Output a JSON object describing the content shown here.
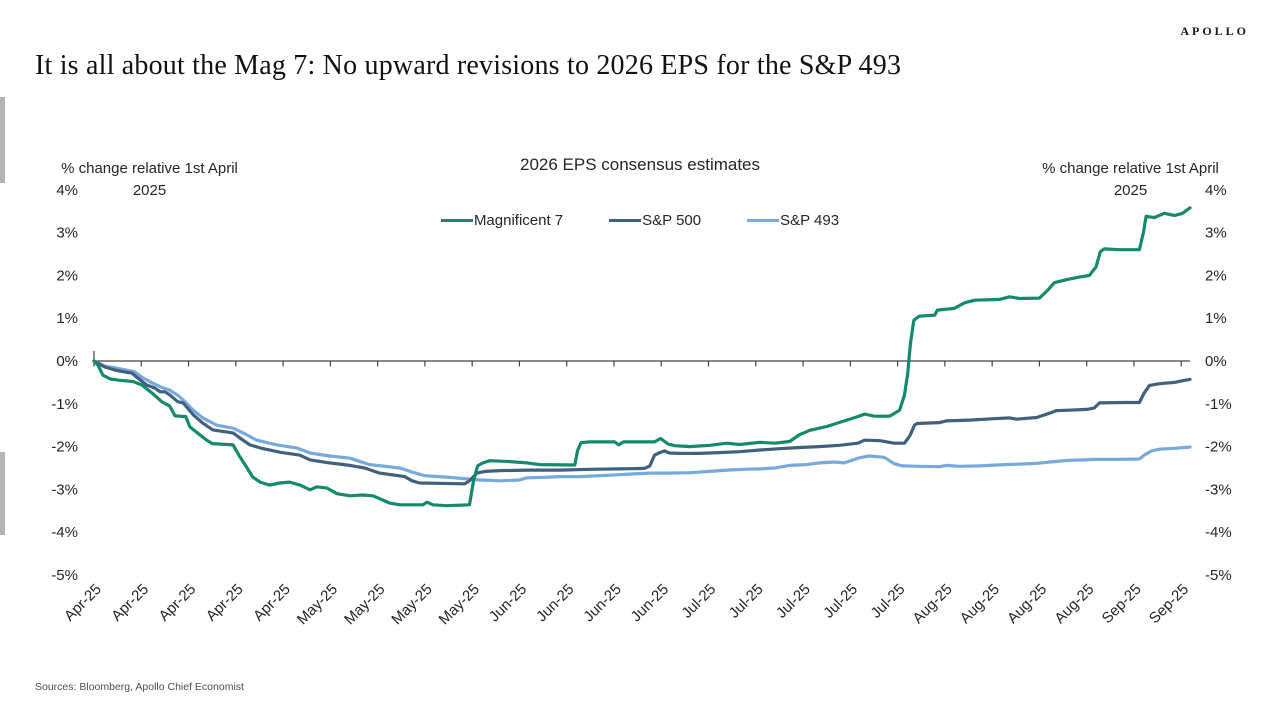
{
  "brand": {
    "logo_text": "APOLLO"
  },
  "headline": "It is all about the Mag 7: No upward revisions to 2026 EPS for the S&P 493",
  "source_note": "Sources: Bloomberg, Apollo Chief Economist",
  "chart_data": {
    "type": "line",
    "title": "2026 EPS consensus estimates",
    "y_axis_title_line1": "% change relative 1st April",
    "y_axis_title_line2": "2025",
    "ylim": [
      -5,
      4
    ],
    "y_ticks": [
      4,
      3,
      2,
      1,
      0,
      -1,
      -2,
      -3,
      -4,
      -5
    ],
    "y_tick_suffix": "%",
    "grid": false,
    "legend_position": "top-center",
    "x_domain_days": [
      0,
      162.3
    ],
    "x_tick_interval_days": 7,
    "x_tick_labels": [
      "Apr-25",
      "Apr-25",
      "Apr-25",
      "Apr-25",
      "Apr-25",
      "May-25",
      "May-25",
      "May-25",
      "May-25",
      "Jun-25",
      "Jun-25",
      "Jun-25",
      "Jun-25",
      "Jul-25",
      "Jul-25",
      "Jul-25",
      "Jul-25",
      "Jul-25",
      "Aug-25",
      "Aug-25",
      "Aug-25",
      "Aug-25",
      "Sep-25",
      "Sep-25"
    ],
    "series": [
      {
        "name": "Magnificent 7",
        "color": "#15896B",
        "points": [
          [
            0,
            0
          ],
          [
            0.6,
            -0.1
          ],
          [
            1.3,
            -0.33
          ],
          [
            2.4,
            -0.42
          ],
          [
            3.8,
            -0.45
          ],
          [
            5.8,
            -0.48
          ],
          [
            7.1,
            -0.56
          ],
          [
            8.6,
            -0.75
          ],
          [
            10.1,
            -0.96
          ],
          [
            11.2,
            -1.05
          ],
          [
            12,
            -1.28
          ],
          [
            13.6,
            -1.3
          ],
          [
            14.2,
            -1.54
          ],
          [
            15.7,
            -1.73
          ],
          [
            16.7,
            -1.85
          ],
          [
            17.5,
            -1.93
          ],
          [
            20.6,
            -1.96
          ],
          [
            21.6,
            -2.24
          ],
          [
            22.6,
            -2.48
          ],
          [
            23.5,
            -2.71
          ],
          [
            24.6,
            -2.83
          ],
          [
            26,
            -2.9
          ],
          [
            27.5,
            -2.85
          ],
          [
            29,
            -2.83
          ],
          [
            30.5,
            -2.9
          ],
          [
            32,
            -3.01
          ],
          [
            33,
            -2.94
          ],
          [
            34.5,
            -2.97
          ],
          [
            36,
            -3.1
          ],
          [
            37.9,
            -3.15
          ],
          [
            39.8,
            -3.13
          ],
          [
            41.3,
            -3.15
          ],
          [
            42.8,
            -3.25
          ],
          [
            43.8,
            -3.32
          ],
          [
            45.3,
            -3.36
          ],
          [
            48.7,
            -3.36
          ],
          [
            49.3,
            -3.3
          ],
          [
            50.2,
            -3.36
          ],
          [
            52.2,
            -3.38
          ],
          [
            55.6,
            -3.36
          ],
          [
            56.2,
            -2.8
          ],
          [
            56.8,
            -2.45
          ],
          [
            57.6,
            -2.38
          ],
          [
            58.6,
            -2.33
          ],
          [
            61.6,
            -2.35
          ],
          [
            64.1,
            -2.38
          ],
          [
            66,
            -2.42
          ],
          [
            71.2,
            -2.43
          ],
          [
            71.6,
            -2.1
          ],
          [
            72.1,
            -1.91
          ],
          [
            73.4,
            -1.89
          ],
          [
            77.1,
            -1.89
          ],
          [
            77.7,
            -1.96
          ],
          [
            78.4,
            -1.89
          ],
          [
            83,
            -1.89
          ],
          [
            83.9,
            -1.81
          ],
          [
            85,
            -1.94
          ],
          [
            86,
            -1.98
          ],
          [
            88.2,
            -2
          ],
          [
            91.2,
            -1.97
          ],
          [
            93.7,
            -1.92
          ],
          [
            95.6,
            -1.95
          ],
          [
            98.6,
            -1.9
          ],
          [
            100.8,
            -1.92
          ],
          [
            103,
            -1.88
          ],
          [
            104.5,
            -1.72
          ],
          [
            106,
            -1.62
          ],
          [
            108.5,
            -1.53
          ],
          [
            111.1,
            -1.4
          ],
          [
            113.1,
            -1.3
          ],
          [
            114.1,
            -1.24
          ],
          [
            115.6,
            -1.29
          ],
          [
            117.8,
            -1.29
          ],
          [
            119.3,
            -1.15
          ],
          [
            120,
            -0.8
          ],
          [
            120.5,
            -0.3
          ],
          [
            120.9,
            0.4
          ],
          [
            121.4,
            0.95
          ],
          [
            122.2,
            1.05
          ],
          [
            124.5,
            1.07
          ],
          [
            124.9,
            1.19
          ],
          [
            127.4,
            1.23
          ],
          [
            128.9,
            1.36
          ],
          [
            130.4,
            1.42
          ],
          [
            134.1,
            1.44
          ],
          [
            135.6,
            1.5
          ],
          [
            137,
            1.46
          ],
          [
            140,
            1.47
          ],
          [
            141.2,
            1.65
          ],
          [
            142.2,
            1.83
          ],
          [
            144,
            1.9
          ],
          [
            145.9,
            1.96
          ],
          [
            147.4,
            2
          ],
          [
            148.4,
            2.2
          ],
          [
            149,
            2.55
          ],
          [
            149.6,
            2.62
          ],
          [
            151.8,
            2.6
          ],
          [
            154.8,
            2.6
          ],
          [
            155.4,
            3
          ],
          [
            155.8,
            3.38
          ],
          [
            157,
            3.35
          ],
          [
            158.5,
            3.45
          ],
          [
            160,
            3.4
          ],
          [
            161.2,
            3.45
          ],
          [
            162.3,
            3.58
          ]
        ]
      },
      {
        "name": "S&P 500",
        "color": "#41607E",
        "points": [
          [
            0,
            0
          ],
          [
            1.6,
            -0.14
          ],
          [
            3.1,
            -0.21
          ],
          [
            4.6,
            -0.26
          ],
          [
            5.6,
            -0.28
          ],
          [
            6.5,
            -0.4
          ],
          [
            7.8,
            -0.56
          ],
          [
            9,
            -0.63
          ],
          [
            9.8,
            -0.72
          ],
          [
            10.5,
            -0.72
          ],
          [
            11.2,
            -0.79
          ],
          [
            12.4,
            -0.95
          ],
          [
            13.2,
            -0.98
          ],
          [
            14.7,
            -1.26
          ],
          [
            16.1,
            -1.45
          ],
          [
            17.6,
            -1.61
          ],
          [
            20.6,
            -1.68
          ],
          [
            21.6,
            -1.8
          ],
          [
            23.1,
            -1.96
          ],
          [
            24.6,
            -2.03
          ],
          [
            27.5,
            -2.13
          ],
          [
            30.5,
            -2.2
          ],
          [
            32,
            -2.31
          ],
          [
            34.9,
            -2.38
          ],
          [
            37.9,
            -2.44
          ],
          [
            40.1,
            -2.5
          ],
          [
            42.3,
            -2.62
          ],
          [
            46,
            -2.7
          ],
          [
            47.1,
            -2.8
          ],
          [
            48.2,
            -2.85
          ],
          [
            54.9,
            -2.87
          ],
          [
            55.6,
            -2.8
          ],
          [
            56.7,
            -2.62
          ],
          [
            57.9,
            -2.58
          ],
          [
            60.1,
            -2.56
          ],
          [
            64.5,
            -2.55
          ],
          [
            69,
            -2.55
          ],
          [
            73.4,
            -2.53
          ],
          [
            77.8,
            -2.52
          ],
          [
            81.5,
            -2.51
          ],
          [
            82.3,
            -2.45
          ],
          [
            83,
            -2.2
          ],
          [
            83.8,
            -2.14
          ],
          [
            84.5,
            -2.1
          ],
          [
            85.2,
            -2.15
          ],
          [
            86.7,
            -2.16
          ],
          [
            89.7,
            -2.16
          ],
          [
            92.6,
            -2.14
          ],
          [
            95.6,
            -2.12
          ],
          [
            98.6,
            -2.08
          ],
          [
            101.5,
            -2.05
          ],
          [
            104.5,
            -2.02
          ],
          [
            107.4,
            -2
          ],
          [
            110.4,
            -1.97
          ],
          [
            113.1,
            -1.92
          ],
          [
            114.1,
            -1.85
          ],
          [
            116.3,
            -1.86
          ],
          [
            118.5,
            -1.92
          ],
          [
            120,
            -1.92
          ],
          [
            120.8,
            -1.75
          ],
          [
            121.5,
            -1.5
          ],
          [
            121.9,
            -1.46
          ],
          [
            125.2,
            -1.44
          ],
          [
            126.2,
            -1.4
          ],
          [
            129.6,
            -1.38
          ],
          [
            133,
            -1.35
          ],
          [
            135.6,
            -1.33
          ],
          [
            136.6,
            -1.36
          ],
          [
            139.6,
            -1.32
          ],
          [
            141.5,
            -1.22
          ],
          [
            142.5,
            -1.16
          ],
          [
            144.4,
            -1.15
          ],
          [
            147,
            -1.13
          ],
          [
            148.1,
            -1.1
          ],
          [
            148.9,
            -0.98
          ],
          [
            152.6,
            -0.97
          ],
          [
            154.8,
            -0.97
          ],
          [
            155.5,
            -0.75
          ],
          [
            156.3,
            -0.57
          ],
          [
            157.8,
            -0.53
          ],
          [
            160,
            -0.5
          ],
          [
            161.5,
            -0.45
          ],
          [
            162.3,
            -0.43
          ]
        ]
      },
      {
        "name": "S&P 493",
        "color": "#77A9DB",
        "points": [
          [
            0,
            0
          ],
          [
            1.6,
            -0.12
          ],
          [
            3.1,
            -0.16
          ],
          [
            5,
            -0.22
          ],
          [
            6.1,
            -0.26
          ],
          [
            7.1,
            -0.38
          ],
          [
            8.6,
            -0.51
          ],
          [
            9.8,
            -0.6
          ],
          [
            11.2,
            -0.68
          ],
          [
            12.4,
            -0.8
          ],
          [
            13.2,
            -0.91
          ],
          [
            14.7,
            -1.15
          ],
          [
            16.1,
            -1.33
          ],
          [
            18.2,
            -1.5
          ],
          [
            20.6,
            -1.57
          ],
          [
            22.1,
            -1.68
          ],
          [
            24.1,
            -1.85
          ],
          [
            27.1,
            -1.96
          ],
          [
            30,
            -2.03
          ],
          [
            32,
            -2.15
          ],
          [
            34.9,
            -2.22
          ],
          [
            37.9,
            -2.27
          ],
          [
            40.8,
            -2.42
          ],
          [
            45.3,
            -2.5
          ],
          [
            47.2,
            -2.6
          ],
          [
            49,
            -2.68
          ],
          [
            52.7,
            -2.72
          ],
          [
            55.6,
            -2.76
          ],
          [
            57.1,
            -2.78
          ],
          [
            60.1,
            -2.8
          ],
          [
            63,
            -2.78
          ],
          [
            64.1,
            -2.73
          ],
          [
            66.7,
            -2.72
          ],
          [
            69,
            -2.7
          ],
          [
            71.9,
            -2.7
          ],
          [
            74.9,
            -2.68
          ],
          [
            77.4,
            -2.66
          ],
          [
            80.8,
            -2.63
          ],
          [
            82.3,
            -2.62
          ],
          [
            85.2,
            -2.62
          ],
          [
            88.2,
            -2.61
          ],
          [
            91.2,
            -2.58
          ],
          [
            93.7,
            -2.55
          ],
          [
            96.3,
            -2.53
          ],
          [
            98.6,
            -2.52
          ],
          [
            100.8,
            -2.5
          ],
          [
            103,
            -2.44
          ],
          [
            105.5,
            -2.42
          ],
          [
            107.4,
            -2.38
          ],
          [
            109.7,
            -2.36
          ],
          [
            111.1,
            -2.38
          ],
          [
            113.4,
            -2.26
          ],
          [
            114.8,
            -2.22
          ],
          [
            117,
            -2.25
          ],
          [
            118.5,
            -2.4
          ],
          [
            119.7,
            -2.45
          ],
          [
            122.2,
            -2.46
          ],
          [
            125.2,
            -2.47
          ],
          [
            126.2,
            -2.44
          ],
          [
            128.1,
            -2.46
          ],
          [
            131.1,
            -2.45
          ],
          [
            134.8,
            -2.42
          ],
          [
            137,
            -2.41
          ],
          [
            139.6,
            -2.39
          ],
          [
            142.2,
            -2.35
          ],
          [
            144.4,
            -2.32
          ],
          [
            146.7,
            -2.31
          ],
          [
            148.1,
            -2.3
          ],
          [
            151.1,
            -2.3
          ],
          [
            154.8,
            -2.29
          ],
          [
            155.5,
            -2.2
          ],
          [
            156.6,
            -2.1
          ],
          [
            157.8,
            -2.06
          ],
          [
            160,
            -2.04
          ],
          [
            161.5,
            -2.02
          ],
          [
            162.3,
            -2.01
          ]
        ]
      }
    ]
  }
}
